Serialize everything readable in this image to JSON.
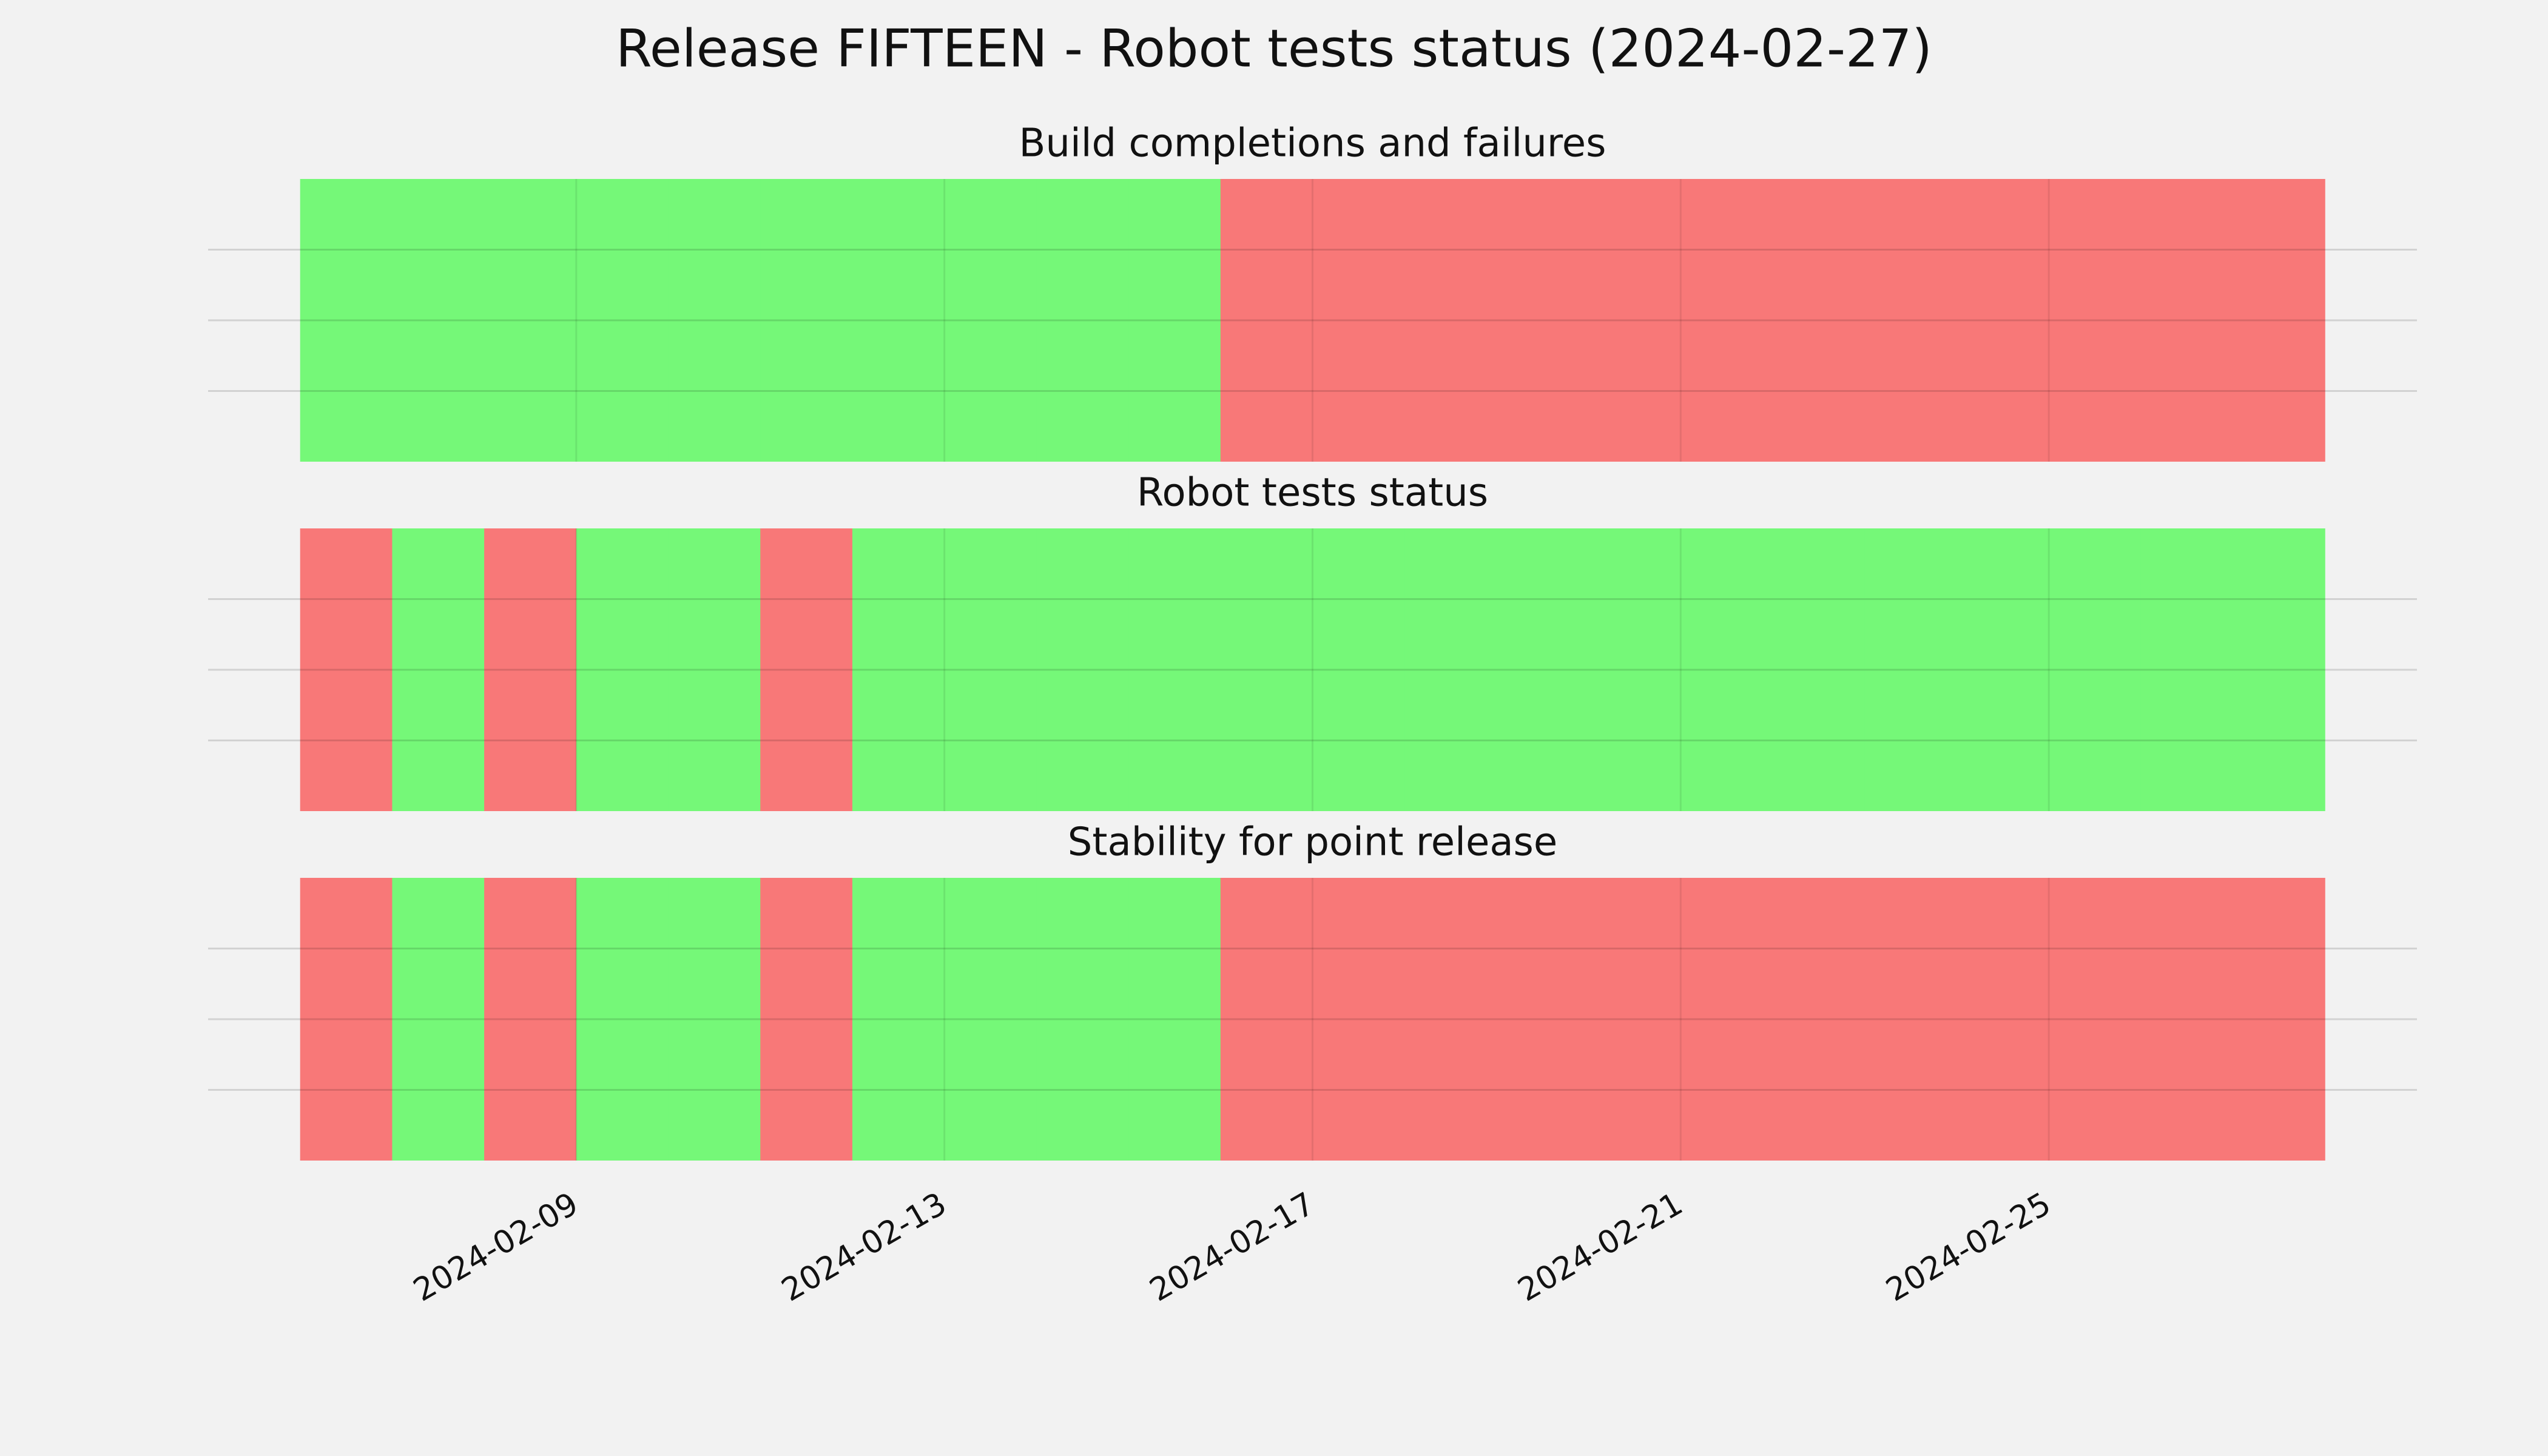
{
  "title": "Release FIFTEEN - Robot tests status (2024-02-27)",
  "chart_data": [
    {
      "type": "timeline",
      "title": "Build completions and failures",
      "x": [
        "2024-02-06",
        "2024-02-07",
        "2024-02-08",
        "2024-02-09",
        "2024-02-10",
        "2024-02-11",
        "2024-02-12",
        "2024-02-13",
        "2024-02-14",
        "2024-02-15",
        "2024-02-16",
        "2024-02-17",
        "2024-02-18",
        "2024-02-19",
        "2024-02-20",
        "2024-02-21",
        "2024-02-22",
        "2024-02-23",
        "2024-02-24",
        "2024-02-25",
        "2024-02-26",
        "2024-02-27"
      ],
      "values": [
        1,
        1,
        1,
        1,
        1,
        1,
        1,
        1,
        1,
        1,
        0,
        0,
        0,
        0,
        0,
        0,
        0,
        0,
        0,
        0,
        0,
        0
      ],
      "color_pass": "#75f878",
      "color_fail": "#f87878",
      "xlim": [
        "2024-02-05",
        "2024-02-29"
      ],
      "xticks": [
        "2024-02-09",
        "2024-02-13",
        "2024-02-17",
        "2024-02-21",
        "2024-02-25"
      ],
      "ylim": [
        0,
        1
      ],
      "yticks": [
        0.25,
        0.5,
        0.75
      ],
      "grid": true
    },
    {
      "type": "timeline",
      "title": "Robot tests status",
      "x": [
        "2024-02-06",
        "2024-02-07",
        "2024-02-08",
        "2024-02-09",
        "2024-02-10",
        "2024-02-11",
        "2024-02-12",
        "2024-02-13",
        "2024-02-14",
        "2024-02-15",
        "2024-02-16",
        "2024-02-17",
        "2024-02-18",
        "2024-02-19",
        "2024-02-20",
        "2024-02-21",
        "2024-02-22",
        "2024-02-23",
        "2024-02-24",
        "2024-02-25",
        "2024-02-26",
        "2024-02-27"
      ],
      "values": [
        0,
        1,
        0,
        1,
        1,
        0,
        1,
        1,
        1,
        1,
        1,
        1,
        1,
        1,
        1,
        1,
        1,
        1,
        1,
        1,
        1,
        1
      ],
      "color_pass": "#75f878",
      "color_fail": "#f87878",
      "xlim": [
        "2024-02-05",
        "2024-02-29"
      ],
      "xticks": [
        "2024-02-09",
        "2024-02-13",
        "2024-02-17",
        "2024-02-21",
        "2024-02-25"
      ],
      "ylim": [
        0,
        1
      ],
      "yticks": [
        0.25,
        0.5,
        0.75
      ],
      "grid": true
    },
    {
      "type": "timeline",
      "title": "Stability for point release",
      "x": [
        "2024-02-06",
        "2024-02-07",
        "2024-02-08",
        "2024-02-09",
        "2024-02-10",
        "2024-02-11",
        "2024-02-12",
        "2024-02-13",
        "2024-02-14",
        "2024-02-15",
        "2024-02-16",
        "2024-02-17",
        "2024-02-18",
        "2024-02-19",
        "2024-02-20",
        "2024-02-21",
        "2024-02-22",
        "2024-02-23",
        "2024-02-24",
        "2024-02-25",
        "2024-02-26",
        "2024-02-27"
      ],
      "values": [
        0,
        1,
        0,
        1,
        1,
        0,
        1,
        1,
        1,
        1,
        0,
        0,
        0,
        0,
        0,
        0,
        0,
        0,
        0,
        0,
        0,
        0
      ],
      "color_pass": "#75f878",
      "color_fail": "#f87878",
      "xlim": [
        "2024-02-05",
        "2024-02-29"
      ],
      "xticks": [
        "2024-02-09",
        "2024-02-13",
        "2024-02-17",
        "2024-02-21",
        "2024-02-25"
      ],
      "ylim": [
        0,
        1
      ],
      "yticks": [
        0.25,
        0.5,
        0.75
      ],
      "grid": true
    }
  ]
}
